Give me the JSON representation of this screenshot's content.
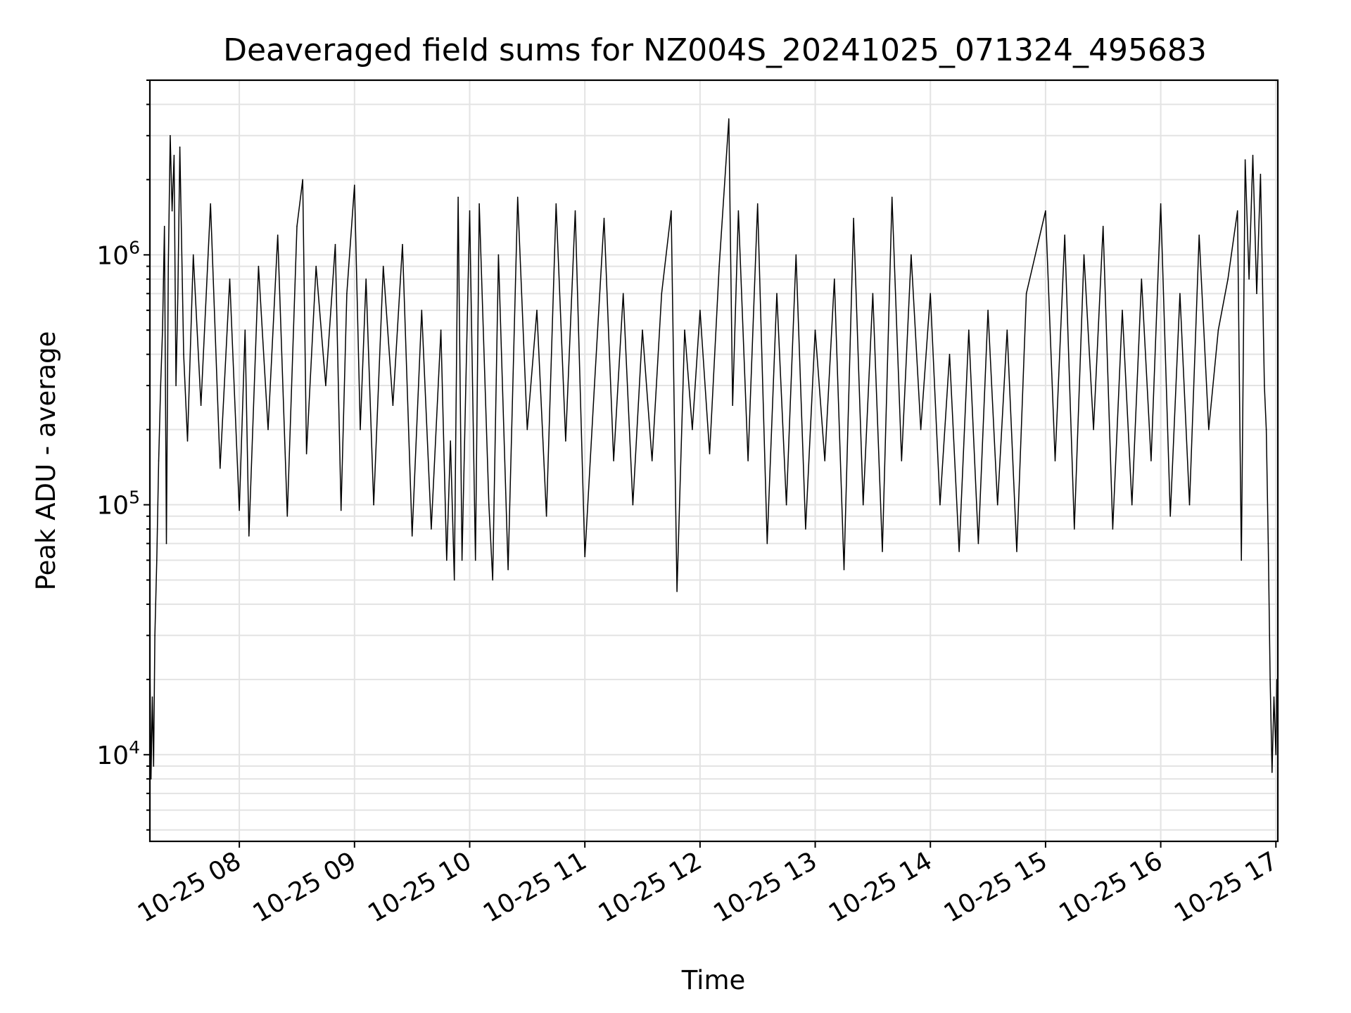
{
  "chart_data": {
    "type": "line",
    "title": "Deaveraged field sums for NZ004S_20241025_071324_495683",
    "xlabel": "Time",
    "ylabel": "Peak ADU - average",
    "x_type": "datetime",
    "xlim": [
      "2024-10-25T07:13:24",
      "2024-10-25T17:01:00"
    ],
    "x_ticks": [
      "2024-10-25T08:00",
      "2024-10-25T09:00",
      "2024-10-25T10:00",
      "2024-10-25T11:00",
      "2024-10-25T12:00",
      "2024-10-25T13:00",
      "2024-10-25T14:00",
      "2024-10-25T15:00",
      "2024-10-25T16:00",
      "2024-10-25T17:00"
    ],
    "x_tick_labels": [
      "10-25 08",
      "10-25 09",
      "10-25 10",
      "10-25 11",
      "10-25 12",
      "10-25 13",
      "10-25 14",
      "10-25 15",
      "10-25 16",
      "10-25 17"
    ],
    "y_scale": "log",
    "ylim": [
      4500,
      5000000
    ],
    "y_tick_labels": [
      {
        "base": "10",
        "exp": "4",
        "value": 10000
      },
      {
        "base": "10",
        "exp": "5",
        "value": 100000
      },
      {
        "base": "10",
        "exp": "6",
        "value": 1000000
      }
    ],
    "grid": true,
    "line_color": "#000000",
    "series": [
      {
        "values": [
          [
            "2024-10-25T07:13:30",
            20000
          ],
          [
            "2024-10-25T07:14:00",
            8000
          ],
          [
            "2024-10-25T07:14:40",
            17000
          ],
          [
            "2024-10-25T07:15:20",
            9000
          ],
          [
            "2024-10-25T07:16:00",
            30000
          ],
          [
            "2024-10-25T07:17:00",
            60000
          ],
          [
            "2024-10-25T07:18:00",
            150000
          ],
          [
            "2024-10-25T07:19:00",
            300000
          ],
          [
            "2024-10-25T07:20:00",
            500000
          ],
          [
            "2024-10-25T07:21:00",
            1300000
          ],
          [
            "2024-10-25T07:22:00",
            70000
          ],
          [
            "2024-10-25T07:23:00",
            900000
          ],
          [
            "2024-10-25T07:24:00",
            3000000
          ],
          [
            "2024-10-25T07:25:00",
            1500000
          ],
          [
            "2024-10-25T07:26:00",
            2500000
          ],
          [
            "2024-10-25T07:27:00",
            300000
          ],
          [
            "2024-10-25T07:28:00",
            700000
          ],
          [
            "2024-10-25T07:29:00",
            2700000
          ],
          [
            "2024-10-25T07:31:00",
            400000
          ],
          [
            "2024-10-25T07:33:00",
            180000
          ],
          [
            "2024-10-25T07:36:00",
            1000000
          ],
          [
            "2024-10-25T07:40:00",
            250000
          ],
          [
            "2024-10-25T07:45:00",
            1600000
          ],
          [
            "2024-10-25T07:50:00",
            140000
          ],
          [
            "2024-10-25T07:55:00",
            800000
          ],
          [
            "2024-10-25T08:00:00",
            95000
          ],
          [
            "2024-10-25T08:03:00",
            500000
          ],
          [
            "2024-10-25T08:05:00",
            75000
          ],
          [
            "2024-10-25T08:10:00",
            900000
          ],
          [
            "2024-10-25T08:15:00",
            200000
          ],
          [
            "2024-10-25T08:20:00",
            1200000
          ],
          [
            "2024-10-25T08:25:00",
            90000
          ],
          [
            "2024-10-25T08:30:00",
            1300000
          ],
          [
            "2024-10-25T08:33:00",
            2000000
          ],
          [
            "2024-10-25T08:35:00",
            160000
          ],
          [
            "2024-10-25T08:40:00",
            900000
          ],
          [
            "2024-10-25T08:45:00",
            300000
          ],
          [
            "2024-10-25T08:50:00",
            1100000
          ],
          [
            "2024-10-25T08:53:00",
            95000
          ],
          [
            "2024-10-25T08:56:00",
            700000
          ],
          [
            "2024-10-25T09:00:00",
            1900000
          ],
          [
            "2024-10-25T09:03:00",
            200000
          ],
          [
            "2024-10-25T09:06:00",
            800000
          ],
          [
            "2024-10-25T09:10:00",
            100000
          ],
          [
            "2024-10-25T09:15:00",
            900000
          ],
          [
            "2024-10-25T09:20:00",
            250000
          ],
          [
            "2024-10-25T09:25:00",
            1100000
          ],
          [
            "2024-10-25T09:30:00",
            75000
          ],
          [
            "2024-10-25T09:35:00",
            600000
          ],
          [
            "2024-10-25T09:40:00",
            80000
          ],
          [
            "2024-10-25T09:45:00",
            500000
          ],
          [
            "2024-10-25T09:48:00",
            60000
          ],
          [
            "2024-10-25T09:50:00",
            180000
          ],
          [
            "2024-10-25T09:52:00",
            50000
          ],
          [
            "2024-10-25T09:54:00",
            1700000
          ],
          [
            "2024-10-25T09:56:00",
            60000
          ],
          [
            "2024-10-25T09:58:00",
            300000
          ],
          [
            "2024-10-25T10:00:00",
            1500000
          ],
          [
            "2024-10-25T10:03:00",
            60000
          ],
          [
            "2024-10-25T10:05:00",
            1600000
          ],
          [
            "2024-10-25T10:10:00",
            100000
          ],
          [
            "2024-10-25T10:12:00",
            50000
          ],
          [
            "2024-10-25T10:15:00",
            1000000
          ],
          [
            "2024-10-25T10:20:00",
            55000
          ],
          [
            "2024-10-25T10:25:00",
            1700000
          ],
          [
            "2024-10-25T10:30:00",
            200000
          ],
          [
            "2024-10-25T10:35:00",
            600000
          ],
          [
            "2024-10-25T10:40:00",
            90000
          ],
          [
            "2024-10-25T10:45:00",
            1600000
          ],
          [
            "2024-10-25T10:50:00",
            180000
          ],
          [
            "2024-10-25T10:55:00",
            1500000
          ],
          [
            "2024-10-25T11:00:00",
            62000
          ],
          [
            "2024-10-25T11:05:00",
            300000
          ],
          [
            "2024-10-25T11:10:00",
            1400000
          ],
          [
            "2024-10-25T11:15:00",
            150000
          ],
          [
            "2024-10-25T11:20:00",
            700000
          ],
          [
            "2024-10-25T11:25:00",
            100000
          ],
          [
            "2024-10-25T11:30:00",
            500000
          ],
          [
            "2024-10-25T11:35:00",
            150000
          ],
          [
            "2024-10-25T11:40:00",
            700000
          ],
          [
            "2024-10-25T11:45:00",
            1500000
          ],
          [
            "2024-10-25T11:48:00",
            45000
          ],
          [
            "2024-10-25T11:52:00",
            500000
          ],
          [
            "2024-10-25T11:56:00",
            200000
          ],
          [
            "2024-10-25T12:00:00",
            600000
          ],
          [
            "2024-10-25T12:05:00",
            160000
          ],
          [
            "2024-10-25T12:10:00",
            900000
          ],
          [
            "2024-10-25T12:15:00",
            3500000
          ],
          [
            "2024-10-25T12:17:00",
            250000
          ],
          [
            "2024-10-25T12:20:00",
            1500000
          ],
          [
            "2024-10-25T12:25:00",
            150000
          ],
          [
            "2024-10-25T12:30:00",
            1600000
          ],
          [
            "2024-10-25T12:35:00",
            70000
          ],
          [
            "2024-10-25T12:40:00",
            700000
          ],
          [
            "2024-10-25T12:45:00",
            100000
          ],
          [
            "2024-10-25T12:50:00",
            1000000
          ],
          [
            "2024-10-25T12:55:00",
            80000
          ],
          [
            "2024-10-25T13:00:00",
            500000
          ],
          [
            "2024-10-25T13:05:00",
            150000
          ],
          [
            "2024-10-25T13:10:00",
            800000
          ],
          [
            "2024-10-25T13:15:00",
            55000
          ],
          [
            "2024-10-25T13:20:00",
            1400000
          ],
          [
            "2024-10-25T13:25:00",
            100000
          ],
          [
            "2024-10-25T13:30:00",
            700000
          ],
          [
            "2024-10-25T13:35:00",
            65000
          ],
          [
            "2024-10-25T13:40:00",
            1700000
          ],
          [
            "2024-10-25T13:45:00",
            150000
          ],
          [
            "2024-10-25T13:50:00",
            1000000
          ],
          [
            "2024-10-25T13:55:00",
            200000
          ],
          [
            "2024-10-25T14:00:00",
            700000
          ],
          [
            "2024-10-25T14:05:00",
            100000
          ],
          [
            "2024-10-25T14:10:00",
            400000
          ],
          [
            "2024-10-25T14:15:00",
            65000
          ],
          [
            "2024-10-25T14:20:00",
            500000
          ],
          [
            "2024-10-25T14:25:00",
            70000
          ],
          [
            "2024-10-25T14:30:00",
            600000
          ],
          [
            "2024-10-25T14:35:00",
            100000
          ],
          [
            "2024-10-25T14:40:00",
            500000
          ],
          [
            "2024-10-25T14:45:00",
            65000
          ],
          [
            "2024-10-25T14:50:00",
            700000
          ],
          [
            "2024-10-25T15:00:00",
            1500000
          ],
          [
            "2024-10-25T15:05:00",
            150000
          ],
          [
            "2024-10-25T15:10:00",
            1200000
          ],
          [
            "2024-10-25T15:15:00",
            80000
          ],
          [
            "2024-10-25T15:20:00",
            1000000
          ],
          [
            "2024-10-25T15:25:00",
            200000
          ],
          [
            "2024-10-25T15:30:00",
            1300000
          ],
          [
            "2024-10-25T15:35:00",
            80000
          ],
          [
            "2024-10-25T15:40:00",
            600000
          ],
          [
            "2024-10-25T15:45:00",
            100000
          ],
          [
            "2024-10-25T15:50:00",
            800000
          ],
          [
            "2024-10-25T15:55:00",
            150000
          ],
          [
            "2024-10-25T16:00:00",
            1600000
          ],
          [
            "2024-10-25T16:05:00",
            90000
          ],
          [
            "2024-10-25T16:10:00",
            700000
          ],
          [
            "2024-10-25T16:15:00",
            100000
          ],
          [
            "2024-10-25T16:20:00",
            1200000
          ],
          [
            "2024-10-25T16:25:00",
            200000
          ],
          [
            "2024-10-25T16:30:00",
            500000
          ],
          [
            "2024-10-25T16:35:00",
            800000
          ],
          [
            "2024-10-25T16:40:00",
            1500000
          ],
          [
            "2024-10-25T16:42:00",
            60000
          ],
          [
            "2024-10-25T16:44:00",
            2400000
          ],
          [
            "2024-10-25T16:46:00",
            800000
          ],
          [
            "2024-10-25T16:48:00",
            2500000
          ],
          [
            "2024-10-25T16:50:00",
            700000
          ],
          [
            "2024-10-25T16:52:00",
            2100000
          ],
          [
            "2024-10-25T16:54:00",
            300000
          ],
          [
            "2024-10-25T16:55:00",
            200000
          ],
          [
            "2024-10-25T16:56:00",
            70000
          ],
          [
            "2024-10-25T16:57:00",
            20000
          ],
          [
            "2024-10-25T16:58:00",
            8500
          ],
          [
            "2024-10-25T16:59:00",
            17000
          ],
          [
            "2024-10-25T17:00:00",
            10000
          ],
          [
            "2024-10-25T17:00:30",
            20000
          ]
        ]
      }
    ]
  }
}
